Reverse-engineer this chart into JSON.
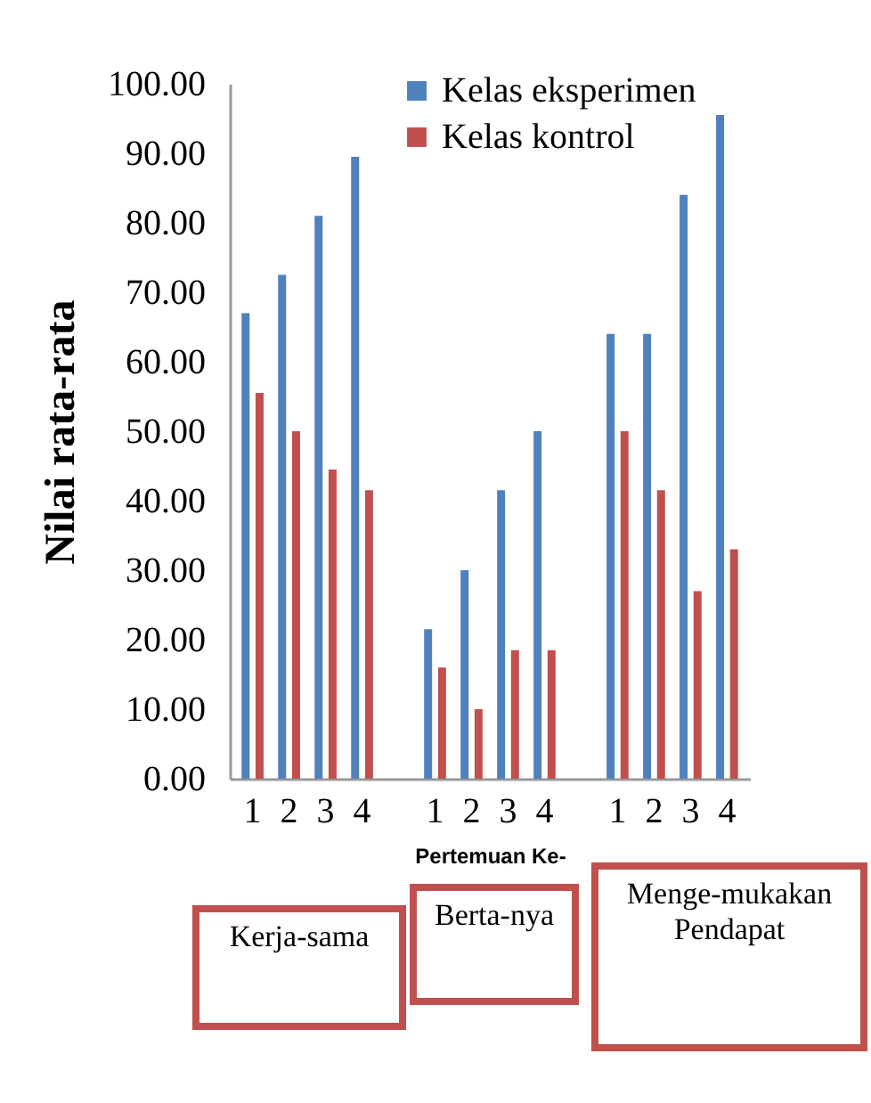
{
  "chart_data": {
    "type": "bar",
    "xlabel": "Pertemuan Ke-",
    "ylabel": "Nilai rata-rata",
    "categories": [
      "1",
      "2",
      "3",
      "4",
      "1",
      "2",
      "3",
      "4",
      "1",
      "2",
      "3",
      "4"
    ],
    "series": [
      {
        "name": "Kelas eksperimen",
        "color": "#4f81bd",
        "values": [
          67,
          72.5,
          81,
          89.5,
          21.5,
          30,
          41.5,
          50,
          64,
          64,
          84,
          95.5
        ]
      },
      {
        "name": "Kelas kontrol",
        "color": "#c0504d",
        "values": [
          55.5,
          50,
          44.5,
          41.5,
          16,
          10,
          18.5,
          18.5,
          50,
          41.5,
          27,
          33
        ]
      }
    ],
    "ylim": [
      0,
      100
    ],
    "yticks": [
      {
        "value": 0,
        "label": "0.00"
      },
      {
        "value": 10,
        "label": "10.00"
      },
      {
        "value": 20,
        "label": "20.00"
      },
      {
        "value": 30,
        "label": "30.00"
      },
      {
        "value": 40,
        "label": "40.00"
      },
      {
        "value": 50,
        "label": "50.00"
      },
      {
        "value": 60,
        "label": "60.00"
      },
      {
        "value": 70,
        "label": "70.00"
      },
      {
        "value": 80,
        "label": "80.00"
      },
      {
        "value": 90,
        "label": "90.00"
      },
      {
        "value": 100,
        "label": "100.00"
      }
    ],
    "grid": false,
    "legend": "top right",
    "annotations": [
      "Kerja-sama",
      "Berta-nya",
      "Menge-mukakan Pendapat"
    ]
  }
}
